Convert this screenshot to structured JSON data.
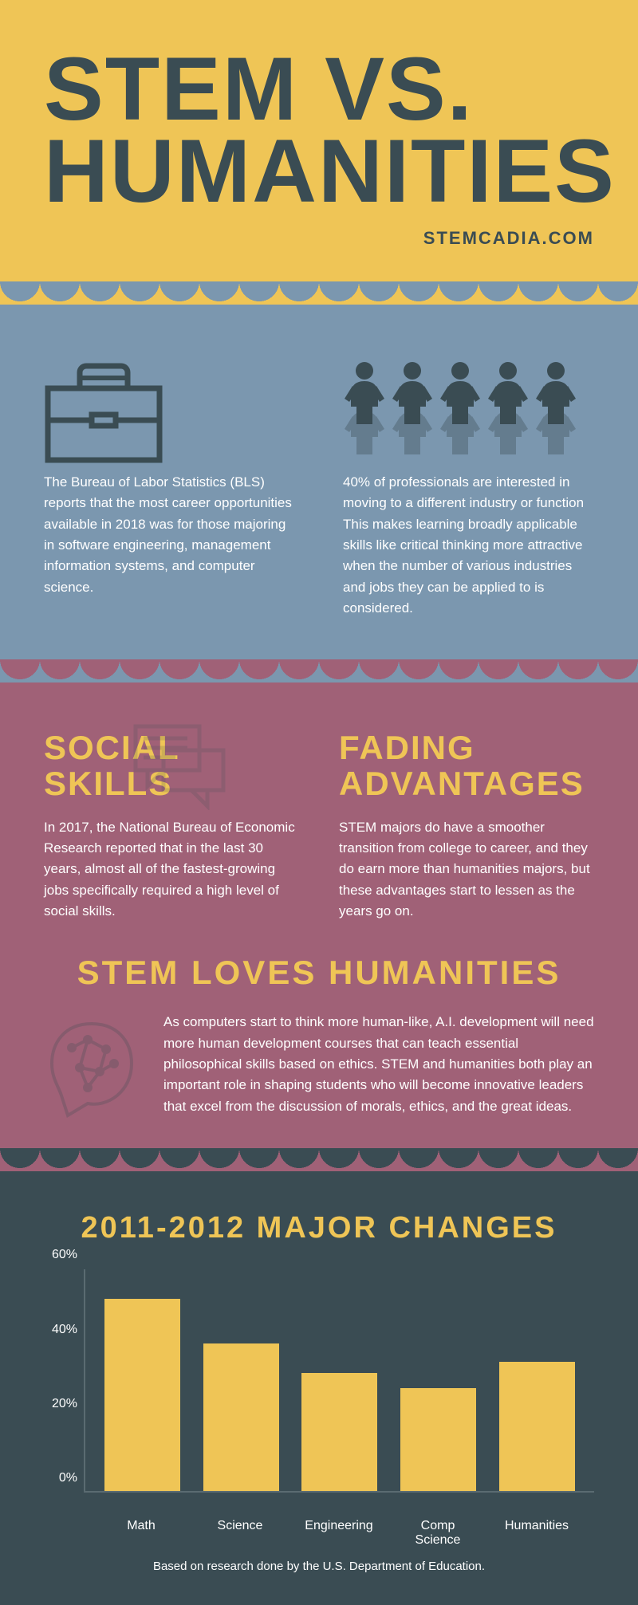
{
  "hero": {
    "title": "STEM VS. HUMANITIES",
    "website": "STEMCADIA.COM"
  },
  "colors": {
    "yellow": "#efc556",
    "blue": "#7b97af",
    "mauve": "#a06177",
    "dark": "#3a4c53",
    "white": "#ffffff"
  },
  "blue": {
    "left_text": "The Bureau of Labor Statistics (BLS) reports that the most career opportunities available in 2018 was for those majoring in software engineering, management information systems, and computer science.",
    "right_text": "40% of professionals are interested in moving to a different industry or function This makes learning broadly applicable skills like critical thinking more attractive when the number of various industries and jobs they can be applied to is considered.",
    "briefcase_color": "#3a4c53",
    "people_front_color": "#3a4c53",
    "people_back_color": "#3a4c53",
    "people_count": 5
  },
  "mauve": {
    "social_heading": "SOCIAL SKILLS",
    "social_text": "In 2017, the National Bureau of Economic Research reported that in the last 30 years, almost all of the fastest-growing jobs specifically required a high level of social skills.",
    "fading_heading": "FADING ADVANTAGES",
    "fading_text": "STEM majors do have a smoother transition from college to career, and they do earn more than humanities majors, but these advantages start to lessen as the years go on.",
    "loves_heading": "STEM LOVES HUMANITIES",
    "loves_text": "As computers start to think more human-like, A.I. development will need more human development courses that can teach essential philosophical skills based on ethics. STEM and humanities both play an important role in shaping students who will become innovative leaders that excel from the discussion of morals, ethics, and the great ideas."
  },
  "chart": {
    "title": "2011-2012 MAJOR CHANGES",
    "type": "bar",
    "y_max": 60,
    "y_ticks": [
      0,
      20,
      40,
      60
    ],
    "y_tick_labels": [
      "0%",
      "20%",
      "40%",
      "60%"
    ],
    "categories": [
      "Math",
      "Science",
      "Engineering",
      "Comp Science",
      "Humanities"
    ],
    "values": [
      52,
      40,
      32,
      28,
      35
    ],
    "bar_color": "#efc556",
    "axis_color": "#5a6b71",
    "text_color": "#ffffff",
    "background_color": "#3a4c53",
    "footer": "Based on research done by the U.S. Department of Education."
  }
}
